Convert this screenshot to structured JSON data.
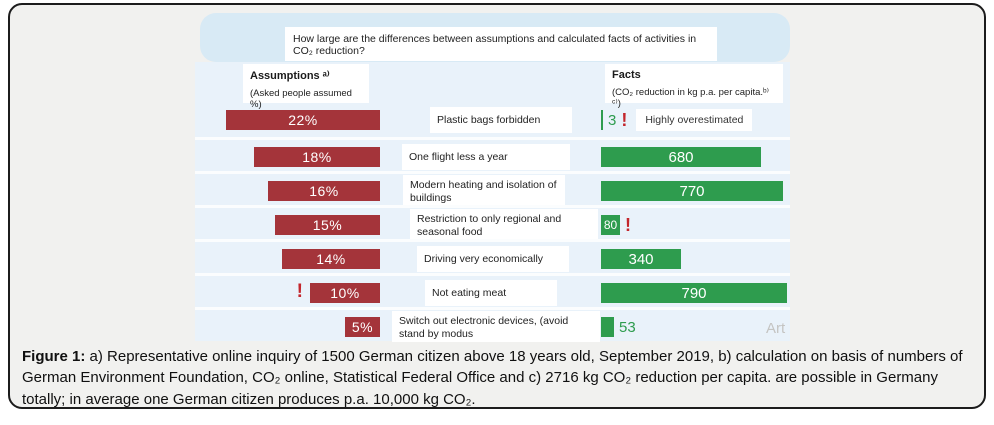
{
  "colors": {
    "assumption_red": "#A4343A",
    "fact_green": "#2E9C4E",
    "warning_red": "#C3262C",
    "panel_blue": "#E9F2FA",
    "question_blue": "#D8EAF5"
  },
  "question": "How large are the differences between assumptions and calculated facts of activities in CO₂ reduction?",
  "headers": {
    "assumptions_title": "Assumptions ᵃ⁾",
    "assumptions_sub": "(Asked people assumed %)",
    "facts_title": "Facts",
    "facts_sub": "(CO₂ reduction in kg p.a. per capita.ᵇ⁾ ᶜ⁾)"
  },
  "rows": [
    {
      "assumption": "22%",
      "activity": "Plastic bags forbidden",
      "fact": "3",
      "fact_warning": "!",
      "fact_note": "Highly overestimated"
    },
    {
      "assumption": "18%",
      "activity": "One flight less a year",
      "fact": "680"
    },
    {
      "assumption": "16%",
      "activity": "Modern heating and isolation of buildings",
      "fact": "770"
    },
    {
      "assumption": "15%",
      "activity": "Restriction to only regional and seasonal food",
      "fact": "80",
      "fact_warning": "!"
    },
    {
      "assumption": "14%",
      "activity": "Driving very economically",
      "fact": "340"
    },
    {
      "assumption": "10%",
      "activity": "Not eating meat",
      "fact": "790",
      "assumption_warning": "!"
    },
    {
      "assumption": "5%",
      "activity": "Switch out electronic devices, (avoid stand by modus",
      "fact": "53"
    }
  ],
  "watermark": "Art",
  "caption": {
    "label": "Figure 1:",
    "text": " a) Representative online inquiry of 1500 German citizen above 18 years old, September 2019, b) calculation on basis of numbers of German Environment Foundation, CO₂ online, Statistical Federal Office and c) 2716 kg CO₂ reduction per capita. are possible in Germany totally; in average one German citizen produces p.a. 10,000 kg CO₂."
  },
  "chart_data": {
    "type": "bar",
    "orientation": "horizontal-diverging",
    "title": "How large are the differences between assumptions and calculated facts of activities in CO₂ reduction?",
    "categories": [
      "Plastic bags forbidden",
      "One flight less a year",
      "Modern heating and isolation of buildings",
      "Restriction to only regional and seasonal food",
      "Driving very economically",
      "Not eating meat",
      "Switch out electronic devices, (avoid stand by modus"
    ],
    "series": [
      {
        "name": "Assumptions ᵃ⁾ (Asked people assumed %)",
        "unit": "%",
        "color": "#A4343A",
        "values": [
          22,
          18,
          16,
          15,
          14,
          10,
          5
        ]
      },
      {
        "name": "Facts (CO₂ reduction in kg p.a. per capita.ᵇ⁾ ᶜ⁾)",
        "unit": "kg CO₂ p.a. per capita",
        "color": "#2E9C4E",
        "values": [
          3,
          680,
          770,
          80,
          340,
          790,
          53
        ]
      }
    ],
    "annotations": [
      {
        "row": 0,
        "text": "Highly overestimated",
        "marker": "!"
      },
      {
        "row": 3,
        "marker": "!"
      },
      {
        "row": 5,
        "marker": "!"
      }
    ],
    "legend_position": "column headers",
    "grid": false
  }
}
